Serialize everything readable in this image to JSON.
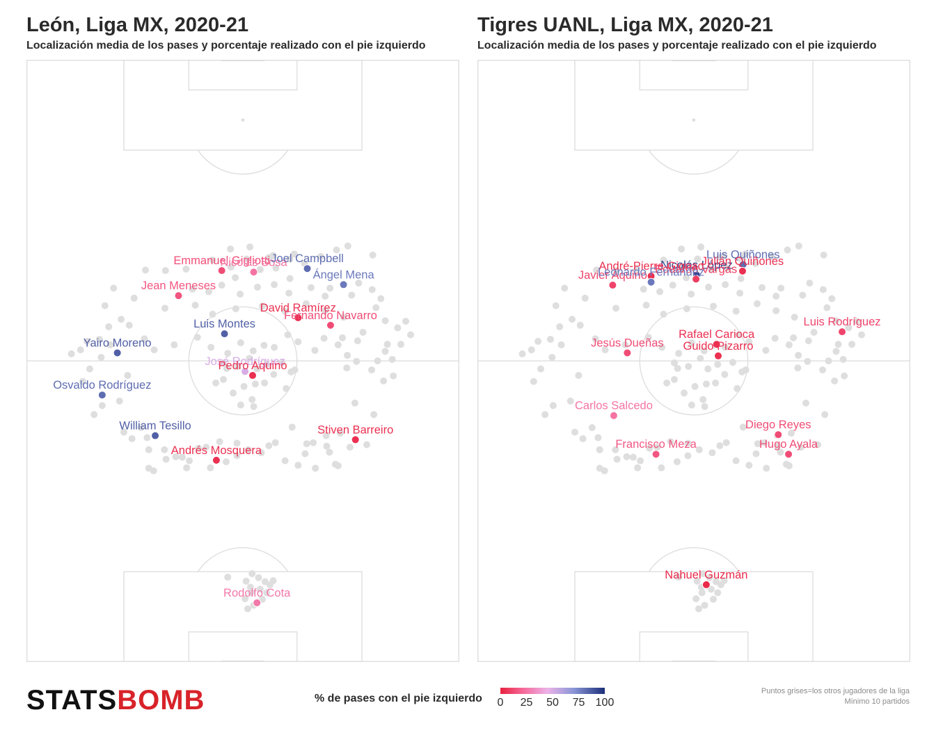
{
  "panels": [
    {
      "title": "León, Liga MX, 2020-21",
      "subtitle": "Localización media de los pases y porcentaje realizado con el pie izquierdo",
      "chart_data": {
        "type": "scatter",
        "x_range": [
          0,
          80
        ],
        "y_range": [
          0,
          120
        ],
        "players": [
          {
            "name": "Emmanuel Gigliotti",
            "x": 36.1,
            "y": 78.0,
            "pct": 15
          },
          {
            "name": "Nicolás Sosa",
            "x": 42.0,
            "y": 77.7,
            "pct": 28
          },
          {
            "name": "Joel Campbell",
            "x": 51.9,
            "y": 78.4,
            "pct": 85
          },
          {
            "name": "Jean Meneses",
            "x": 28.1,
            "y": 73.0,
            "pct": 18
          },
          {
            "name": "Ángel Mena",
            "x": 58.6,
            "y": 75.2,
            "pct": 82
          },
          {
            "name": "David Ramírez",
            "x": 50.2,
            "y": 68.6,
            "pct": 5
          },
          {
            "name": "Fernando Navarro",
            "x": 56.2,
            "y": 67.1,
            "pct": 15
          },
          {
            "name": "Luis Montes",
            "x": 36.6,
            "y": 65.4,
            "pct": 88
          },
          {
            "name": "Yairo Moreno",
            "x": 16.8,
            "y": 61.6,
            "pct": 88
          },
          {
            "name": "José Rodríguez",
            "x": 40.4,
            "y": 57.9,
            "pct": 55
          },
          {
            "name": "Pedro Aquino",
            "x": 41.8,
            "y": 57.1,
            "pct": 5
          },
          {
            "name": "Osvaldo Rodríguez",
            "x": 14.0,
            "y": 53.2,
            "pct": 85
          },
          {
            "name": "William Tesillo",
            "x": 23.8,
            "y": 45.1,
            "pct": 88
          },
          {
            "name": "Stiven Barreiro",
            "x": 60.8,
            "y": 44.3,
            "pct": 5
          },
          {
            "name": "Andrés Mosquera",
            "x": 35.1,
            "y": 40.2,
            "pct": 5
          },
          {
            "name": "Rodolfo Cota",
            "x": 42.6,
            "y": 11.8,
            "pct": 30
          }
        ]
      }
    },
    {
      "title": "Tigres UANL, Liga MX, 2020-21",
      "subtitle": "Localización media de los pases y porcentaje realizado con el pie izquierdo",
      "chart_data": {
        "type": "scatter",
        "x_range": [
          0,
          80
        ],
        "y_range": [
          0,
          120
        ],
        "players": [
          {
            "name": "Luis Quiñones",
            "x": 49.1,
            "y": 79.2,
            "pct": 85
          },
          {
            "name": "Nicolás López",
            "x": 40.5,
            "y": 77.1,
            "pct": 95
          },
          {
            "name": "Julián Quiñones",
            "x": 49.0,
            "y": 77.9,
            "pct": 5
          },
          {
            "name": "André-Pierre Gignac",
            "x": 32.1,
            "y": 76.9,
            "pct": 5
          },
          {
            "name": "Eduardo Vargas",
            "x": 40.4,
            "y": 76.3,
            "pct": 10
          },
          {
            "name": "Javier Aquino",
            "x": 25.0,
            "y": 75.1,
            "pct": 12
          },
          {
            "name": "Leonardo Fernández",
            "x": 32.1,
            "y": 75.7,
            "pct": 82
          },
          {
            "name": "Luis Rodríguez",
            "x": 67.4,
            "y": 65.8,
            "pct": 12
          },
          {
            "name": "Rafael Carioca",
            "x": 44.2,
            "y": 63.3,
            "pct": 5
          },
          {
            "name": "Jesús Dueñas",
            "x": 27.7,
            "y": 61.6,
            "pct": 15
          },
          {
            "name": "Guido Pizarro",
            "x": 44.5,
            "y": 61.0,
            "pct": 5
          },
          {
            "name": "Carlos Salcedo",
            "x": 25.2,
            "y": 49.1,
            "pct": 28
          },
          {
            "name": "Diego Reyes",
            "x": 55.6,
            "y": 45.3,
            "pct": 15
          },
          {
            "name": "Hugo Ayala",
            "x": 57.5,
            "y": 41.4,
            "pct": 15
          },
          {
            "name": "Francisco Meza",
            "x": 33.0,
            "y": 41.4,
            "pct": 18
          },
          {
            "name": "Nahuel Guzmán",
            "x": 42.3,
            "y": 15.4,
            "pct": 3
          }
        ]
      }
    }
  ],
  "background_points": [
    [
      22.0,
      78.1
    ],
    [
      25.7,
      78.0
    ],
    [
      29.5,
      78.3
    ],
    [
      34.4,
      80.1
    ],
    [
      37.8,
      78.7
    ],
    [
      38.6,
      76.6
    ],
    [
      40.7,
      80.3
    ],
    [
      43.2,
      78.2
    ],
    [
      44.8,
      80.6
    ],
    [
      46.1,
      78.5
    ],
    [
      48.7,
      76.4
    ],
    [
      51.4,
      79.4
    ],
    [
      54.4,
      80.8
    ],
    [
      57.3,
      82.1
    ],
    [
      59.4,
      82.9
    ],
    [
      64.0,
      81.1
    ],
    [
      37.7,
      82.3
    ],
    [
      41.3,
      82.7
    ],
    [
      45.6,
      81.0
    ],
    [
      49.5,
      81.3
    ],
    [
      36.1,
      75.1
    ],
    [
      39.5,
      73.3
    ],
    [
      42.7,
      74.7
    ],
    [
      45.8,
      75.2
    ],
    [
      48.5,
      73.5
    ],
    [
      52.6,
      74.6
    ],
    [
      55.2,
      72.9
    ],
    [
      60.1,
      73.1
    ],
    [
      30.7,
      74.3
    ],
    [
      33.7,
      73.8
    ],
    [
      19.9,
      72.5
    ],
    [
      16.1,
      74.5
    ],
    [
      14.5,
      71.0
    ],
    [
      25.6,
      70.5
    ],
    [
      31.2,
      71.1
    ],
    [
      34.4,
      69.3
    ],
    [
      38.7,
      70.4
    ],
    [
      43.6,
      70.9
    ],
    [
      47.8,
      69.9
    ],
    [
      51.7,
      71.4
    ],
    [
      55.2,
      70.0
    ],
    [
      58.6,
      68.7
    ],
    [
      64.6,
      70.6
    ],
    [
      66.3,
      68.0
    ],
    [
      68.6,
      66.6
    ],
    [
      70.1,
      67.9
    ],
    [
      71.0,
      65.2
    ],
    [
      69.2,
      63.3
    ],
    [
      66.3,
      61.9
    ],
    [
      67.6,
      60.3
    ],
    [
      64.9,
      60.0
    ],
    [
      61.2,
      64.0
    ],
    [
      59.3,
      61.1
    ],
    [
      57.6,
      63.2
    ],
    [
      55.0,
      64.5
    ],
    [
      53.3,
      62.1
    ],
    [
      50.2,
      63.8
    ],
    [
      48.3,
      65.2
    ],
    [
      45.8,
      62.7
    ],
    [
      43.9,
      63.1
    ],
    [
      41.9,
      62.0
    ],
    [
      39.6,
      63.6
    ],
    [
      37.2,
      61.5
    ],
    [
      34.1,
      62.7
    ],
    [
      31.6,
      64.7
    ],
    [
      27.3,
      63.2
    ],
    [
      23.6,
      62.2
    ],
    [
      21.8,
      64.4
    ],
    [
      19.0,
      67.1
    ],
    [
      17.5,
      68.3
    ],
    [
      15.2,
      66.8
    ],
    [
      13.5,
      64.3
    ],
    [
      11.2,
      63.9
    ],
    [
      10.0,
      62.2
    ],
    [
      8.3,
      61.4
    ],
    [
      11.7,
      58.4
    ],
    [
      13.8,
      60.7
    ],
    [
      15.5,
      63.2
    ],
    [
      18.7,
      57.1
    ],
    [
      10.4,
      55.9
    ],
    [
      17.2,
      52.0
    ],
    [
      12.5,
      49.3
    ],
    [
      14.0,
      51.1
    ],
    [
      39.0,
      58.9
    ],
    [
      41.2,
      60.5
    ],
    [
      42.6,
      58.4
    ],
    [
      44.4,
      59.3
    ],
    [
      45.7,
      57.3
    ],
    [
      47.2,
      59.7
    ],
    [
      48.9,
      57.8
    ],
    [
      44.0,
      55.6
    ],
    [
      42.3,
      55.4
    ],
    [
      40.2,
      54.9
    ],
    [
      41.7,
      52.3
    ],
    [
      39.6,
      51.2
    ],
    [
      42.0,
      50.9
    ],
    [
      38.2,
      53.6
    ],
    [
      36.4,
      56.3
    ],
    [
      35.0,
      55.6
    ],
    [
      37.0,
      58.5
    ],
    [
      36.4,
      59.6
    ],
    [
      48.0,
      54.5
    ],
    [
      49.6,
      58.2
    ],
    [
      60.7,
      51.6
    ],
    [
      67.8,
      57.0
    ],
    [
      64.2,
      49.3
    ],
    [
      58.0,
      45.6
    ],
    [
      55.4,
      45.1
    ],
    [
      53.0,
      43.7
    ],
    [
      51.5,
      41.5
    ],
    [
      56.0,
      41.8
    ],
    [
      59.8,
      42.8
    ],
    [
      62.9,
      43.3
    ],
    [
      57.1,
      39.4
    ],
    [
      53.4,
      38.6
    ],
    [
      50.2,
      39.2
    ],
    [
      47.8,
      40.1
    ],
    [
      43.4,
      41.7
    ],
    [
      41.0,
      42.3
    ],
    [
      38.9,
      43.6
    ],
    [
      35.7,
      43.9
    ],
    [
      33.2,
      42.8
    ],
    [
      30.1,
      40.1
    ],
    [
      27.6,
      40.9
    ],
    [
      25.5,
      42.3
    ],
    [
      25.8,
      40.4
    ],
    [
      22.6,
      42.3
    ],
    [
      19.5,
      44.5
    ],
    [
      18.0,
      45.8
    ],
    [
      21.2,
      46.7
    ],
    [
      22.3,
      44.7
    ],
    [
      28.8,
      40.8
    ],
    [
      31.8,
      42.6
    ],
    [
      23.5,
      38.1
    ],
    [
      29.6,
      38.7
    ],
    [
      34.0,
      38.7
    ],
    [
      36.9,
      39.9
    ],
    [
      38.9,
      41.1
    ],
    [
      44.8,
      43.1
    ],
    [
      46.0,
      43.7
    ],
    [
      49.1,
      46.8
    ],
    [
      51.8,
      43.5
    ],
    [
      55.5,
      43.0
    ],
    [
      57.6,
      39.1
    ],
    [
      22.6,
      38.6
    ],
    [
      40.6,
      16.1
    ],
    [
      41.4,
      14.9
    ],
    [
      42.9,
      16.8
    ],
    [
      44.1,
      16.0
    ],
    [
      45.0,
      15.4
    ],
    [
      41.5,
      13.8
    ],
    [
      43.6,
      12.5
    ],
    [
      42.0,
      11.3
    ],
    [
      40.4,
      12.6
    ],
    [
      40.9,
      10.6
    ],
    [
      37.2,
      16.9
    ],
    [
      41.7,
      17.6
    ],
    [
      43.2,
      14.5
    ],
    [
      44.4,
      13.8
    ],
    [
      45.6,
      16.2
    ],
    [
      48.7,
      80.3
    ],
    [
      56.1,
      74.5
    ],
    [
      61.4,
      75.5
    ],
    [
      63.9,
      74.2
    ],
    [
      65.5,
      72.4
    ],
    [
      58.4,
      64.6
    ],
    [
      62.2,
      65.7
    ],
    [
      66.7,
      63.3
    ],
    [
      61.0,
      59.9
    ],
    [
      63.8,
      58.2
    ],
    [
      66.0,
      56.0
    ],
    [
      59.2,
      58.6
    ]
  ],
  "legend": {
    "title": "% de pases con el pie izquierdo",
    "ticks": [
      "0",
      "25",
      "50",
      "75",
      "100"
    ],
    "colors": [
      "#e8213f",
      "#f56a9a",
      "#ecb2e8",
      "#8a96d6",
      "#1c2f7a"
    ]
  },
  "footer": {
    "brand_left": "STATS",
    "brand_right": "BOMB",
    "note_1": "Puntos grises=los otros jugadores de la liga",
    "note_2": "Mínimo 10 partidos"
  }
}
